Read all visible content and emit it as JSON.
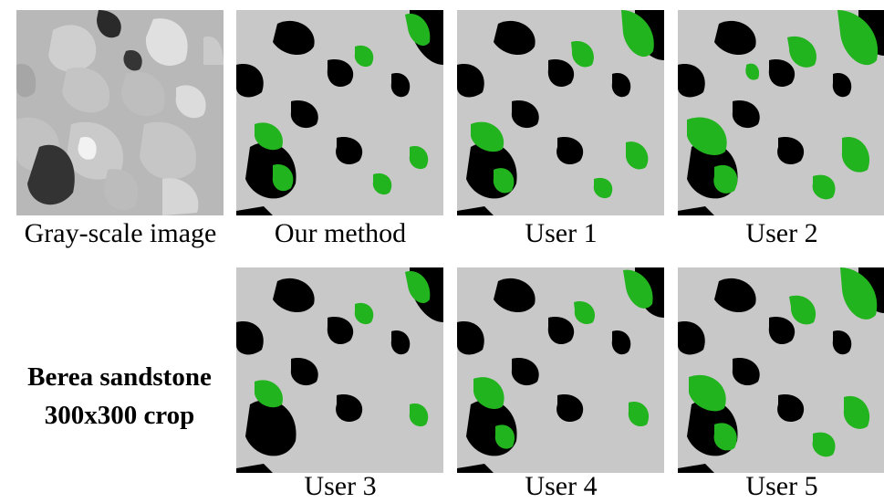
{
  "panels": [
    {
      "id": "gray",
      "caption": "Gray-scale image",
      "kind": "grayscale"
    },
    {
      "id": "our",
      "caption": "Our method",
      "kind": "segmentation"
    },
    {
      "id": "u1",
      "caption": "User 1",
      "kind": "segmentation"
    },
    {
      "id": "u2",
      "caption": "User 2",
      "kind": "segmentation"
    },
    {
      "id": "u3",
      "caption": "User 3",
      "kind": "segmentation"
    },
    {
      "id": "u4",
      "caption": "User 4",
      "kind": "segmentation"
    },
    {
      "id": "u5",
      "caption": "User 5",
      "kind": "segmentation"
    }
  ],
  "side_label": {
    "line1": "Berea sandstone",
    "line2": "300x300 crop"
  },
  "colors": {
    "grain": "#c8c8c8",
    "pore": "#000000",
    "clay": "#22b41e",
    "gray_background": "#b4b4b4"
  }
}
